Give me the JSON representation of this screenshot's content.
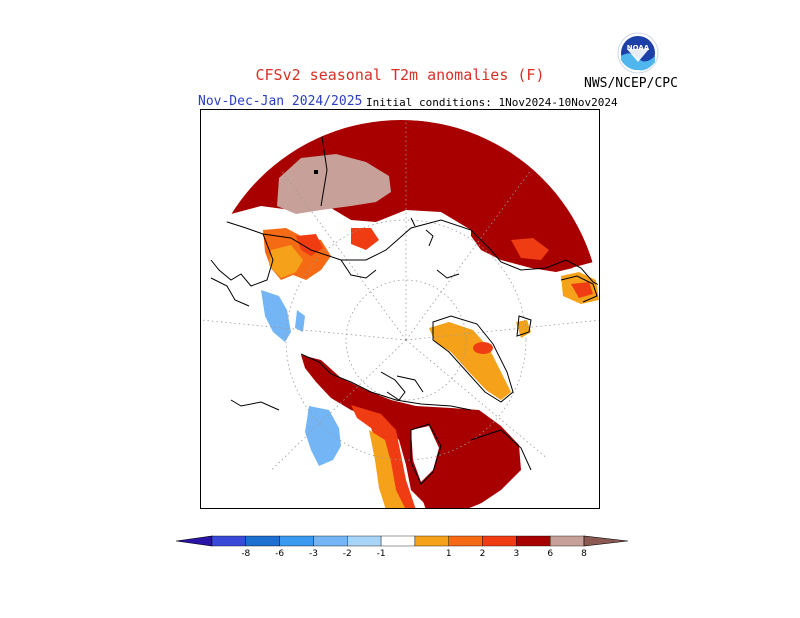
{
  "title": "CFSv2 seasonal T2m anomalies (F)",
  "period": "Nov-Dec-Jan 2024/2025",
  "initial_conditions": "Initial conditions: 1Nov2024-10Nov2024",
  "agency": "NWS/NCEP/CPC",
  "logo_text": "NOAA",
  "colors": {
    "title": "#d73027",
    "period": "#2a3fbf",
    "cold": [
      "#2a14a8",
      "#3a4ad8",
      "#1d6fd0",
      "#3a9af0",
      "#74b6f5",
      "#a8d4f8"
    ],
    "neutral": "#ffffff",
    "warm": [
      "#f5a21a",
      "#f56a14",
      "#f03c12",
      "#a80000",
      "#c8a09a",
      "#8a5a52"
    ]
  },
  "legend": {
    "labels": [
      "-8",
      "-6",
      "-3",
      "-2",
      "-1",
      "1",
      "2",
      "3",
      "6",
      "8"
    ]
  }
}
